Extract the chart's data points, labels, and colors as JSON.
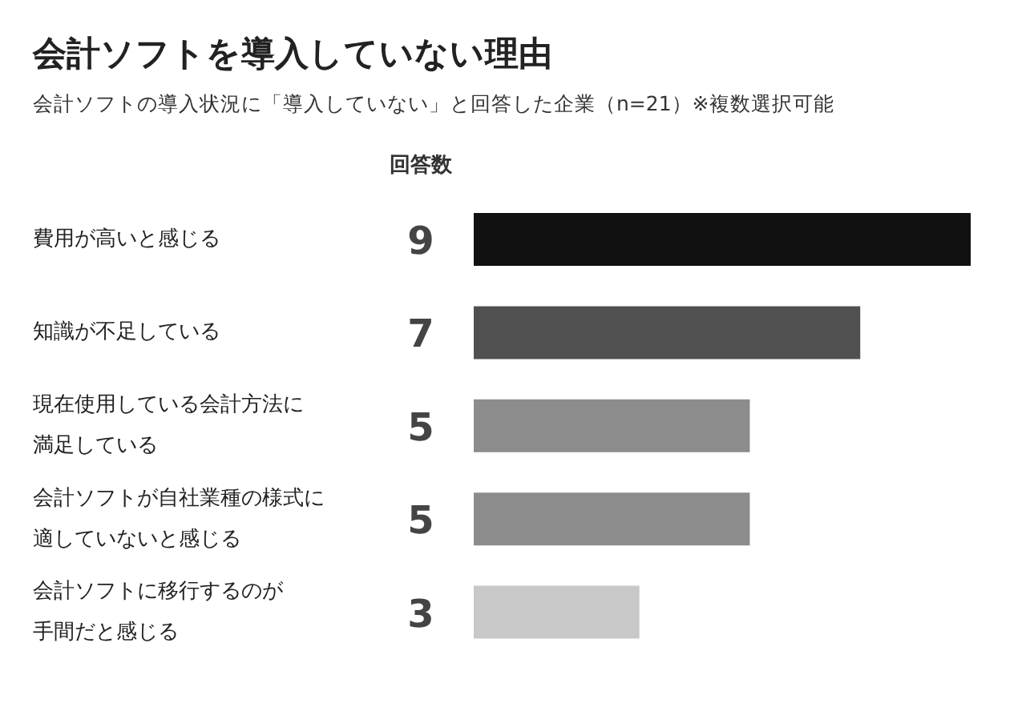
{
  "chart_data": {
    "type": "bar",
    "orientation": "horizontal",
    "title": "会計ソフトを導入していない理由",
    "subtitle": "会計ソフトの導入状況に「導入していない」と回答した企業（n=21）※複数選択可能",
    "categories": [
      "費用が高いと感じる",
      "知識が不足している",
      "現在使用している会計方法に満足している",
      "会計ソフトが自社業種の様式に適していないと感じる",
      "会計ソフトに移行するのが手間だと感じる"
    ],
    "values": [
      9,
      7,
      5,
      5,
      3
    ],
    "colors": [
      "#111111",
      "#505050",
      "#8c8c8c",
      "#8c8c8c",
      "#c8c8c8"
    ],
    "data_labels": true,
    "annotations": [
      "回答数"
    ]
  }
}
